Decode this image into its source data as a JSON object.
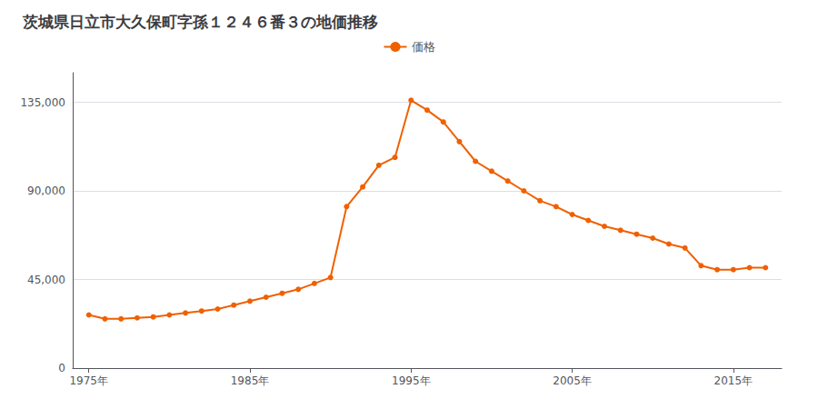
{
  "chart_data": {
    "type": "line",
    "title": "茨城県日立市大久保町字孫１２４６番３の地価推移",
    "x": [
      1975,
      1976,
      1977,
      1978,
      1979,
      1980,
      1981,
      1982,
      1983,
      1984,
      1985,
      1986,
      1987,
      1988,
      1989,
      1990,
      1991,
      1992,
      1993,
      1994,
      1995,
      1996,
      1997,
      1998,
      1999,
      2000,
      2001,
      2002,
      2003,
      2004,
      2005,
      2006,
      2007,
      2008,
      2009,
      2010,
      2011,
      2012,
      2013,
      2014,
      2015,
      2016,
      2017
    ],
    "series": [
      {
        "name": "価格",
        "color": "#f06000",
        "marker": "circle",
        "values": [
          27000,
          25000,
          25000,
          25500,
          26000,
          27000,
          28000,
          29000,
          30000,
          32000,
          34000,
          36000,
          38000,
          40000,
          43000,
          46000,
          82000,
          92000,
          103000,
          107000,
          136000,
          131000,
          125000,
          115000,
          105000,
          100000,
          95000,
          90000,
          85000,
          82000,
          78000,
          75000,
          72000,
          70000,
          68000,
          66000,
          63000,
          61000,
          52000,
          50000,
          50000,
          51000,
          51000
        ]
      }
    ],
    "xlim": [
      1974,
      2018
    ],
    "xticks": [
      {
        "value": 1975,
        "label": "1975年"
      },
      {
        "value": 1985,
        "label": "1985年"
      },
      {
        "value": 1995,
        "label": "1995年"
      },
      {
        "value": 2005,
        "label": "2005年"
      },
      {
        "value": 2015,
        "label": "2015年"
      }
    ],
    "ylim": [
      0,
      150000
    ],
    "yticks": [
      0,
      {
        "value": 45000,
        "label": "45,000"
      },
      {
        "value": 90000,
        "label": "90,000"
      },
      {
        "value": 135000,
        "label": "135,000"
      }
    ],
    "grid": "y",
    "legend": "top"
  }
}
